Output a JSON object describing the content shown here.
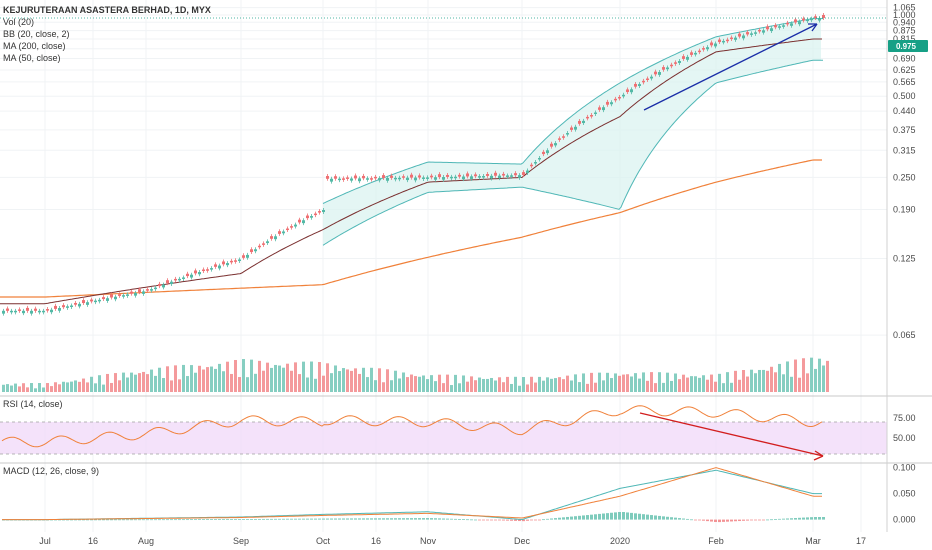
{
  "symbol_title": "KEJURUTERAAN ASASTERA BERHAD, 1D, MYX",
  "indicators": {
    "vol": "Vol (20)",
    "bb": "BB (20, close, 2)",
    "ma200": "MA (200, close)",
    "ma50": "MA (50, close)",
    "rsi": "RSI (14, close)",
    "macd": "MACD (12, 26, close, 9)"
  },
  "last_price_label": "0.975",
  "colors": {
    "up": "#53b9a6",
    "down": "#ef6f72",
    "ma50": "#7a2f2f",
    "ma200": "#f0813a",
    "bb": "#4fb7b6",
    "bb_fill": "#d8f2ef",
    "rsi_line": "#f0813a",
    "rsi_band": "#f1dbf9",
    "macd_line": "#4fb7b6",
    "signal_line": "#f0813a",
    "arrow_price": "#1a2ea8",
    "arrow_rsi": "#d21e1e",
    "last_price": "#17a086"
  },
  "chart_data": {
    "type": "candlestick",
    "x_ticks": [
      "Jul",
      "16",
      "Aug",
      "Sep",
      "Oct",
      "16",
      "Nov",
      "Dec",
      "2020",
      "Feb",
      "Mar",
      "17"
    ],
    "y_ticks": [
      "1.065",
      "1.000",
      "0.940",
      "0.875",
      "0.815",
      "0.750",
      "0.690",
      "0.625",
      "0.565",
      "0.500",
      "0.440",
      "0.375",
      "0.315",
      "0.250",
      "0.190",
      "0.125",
      "0.065"
    ],
    "rsi_ticks": [
      "75.00",
      "50.00"
    ],
    "macd_ticks": [
      "0.100",
      "0.050",
      "0.000"
    ],
    "price_range": [
      0.04,
      1.08
    ],
    "price_anchors": [
      [
        "Jul",
        0.08
      ],
      [
        "Aug",
        0.095
      ],
      [
        "Sep",
        0.125
      ],
      [
        "Oct",
        0.19
      ],
      [
        "16",
        0.24
      ],
      [
        "Nov",
        0.25
      ],
      [
        "Dec",
        0.255
      ],
      [
        "2020",
        0.5
      ],
      [
        "Feb",
        0.79
      ],
      [
        "Mar",
        0.975
      ]
    ],
    "bb_upper_anchors": [
      [
        "Oct",
        0.2
      ],
      [
        "Nov",
        0.285
      ],
      [
        "Dec",
        0.28
      ],
      [
        "2020",
        0.56
      ],
      [
        "Feb",
        0.83
      ],
      [
        "Mar",
        0.97
      ]
    ],
    "bb_lower_anchors": [
      [
        "Oct",
        0.14
      ],
      [
        "Nov",
        0.22
      ],
      [
        "Dec",
        0.23
      ],
      [
        "2020",
        0.19
      ],
      [
        "Feb",
        0.56
      ],
      [
        "Mar",
        0.68
      ]
    ],
    "ma50_anchors": [
      [
        "Jul",
        0.085
      ],
      [
        "Sep",
        0.11
      ],
      [
        "Oct",
        0.16
      ],
      [
        "Nov",
        0.24
      ],
      [
        "Dec",
        0.25
      ],
      [
        "2020",
        0.42
      ],
      [
        "Feb",
        0.73
      ],
      [
        "Mar",
        0.815
      ]
    ],
    "ma200_anchors": [
      [
        "Jul",
        0.09
      ],
      [
        "Oct",
        0.1
      ],
      [
        "Dec",
        0.15
      ],
      [
        "2020",
        0.185
      ],
      [
        "Feb",
        0.24
      ],
      [
        "Mar",
        0.29
      ]
    ],
    "volume_anchors": [
      [
        "Jul",
        0.15
      ],
      [
        "Aug",
        0.4
      ],
      [
        "Sep",
        0.55
      ],
      [
        "Oct",
        0.5
      ],
      [
        "Nov",
        0.3
      ],
      [
        "Dec",
        0.25
      ],
      [
        "2020",
        0.35
      ],
      [
        "Feb",
        0.3
      ],
      [
        "Mar",
        0.6
      ]
    ],
    "rsi_range": [
      20,
      100
    ],
    "rsi_anchors": [
      [
        "Jul",
        45
      ],
      [
        "Aug",
        55
      ],
      [
        "Sep",
        72
      ],
      [
        "Oct",
        70
      ],
      [
        "16",
        78
      ],
      [
        "Nov",
        70
      ],
      [
        "Dec",
        60
      ],
      [
        "2020",
        85
      ],
      [
        "Feb",
        82
      ],
      [
        "Mar",
        70
      ]
    ],
    "macd_range": [
      -0.02,
      0.105
    ],
    "macd_anchors": [
      [
        "Jul",
        0.0
      ],
      [
        "Sep",
        0.005
      ],
      [
        "Oct",
        0.01
      ],
      [
        "Nov",
        0.015
      ],
      [
        "Dec",
        0.0
      ],
      [
        "2020",
        0.06
      ],
      [
        "Feb",
        0.095
      ],
      [
        "Mar",
        0.05
      ]
    ],
    "signal_anchors": [
      [
        "Jul",
        0.0
      ],
      [
        "Sep",
        0.004
      ],
      [
        "Oct",
        0.008
      ],
      [
        "Nov",
        0.012
      ],
      [
        "Dec",
        0.003
      ],
      [
        "2020",
        0.045
      ],
      [
        "Feb",
        0.1
      ],
      [
        "Mar",
        0.045
      ]
    ]
  }
}
